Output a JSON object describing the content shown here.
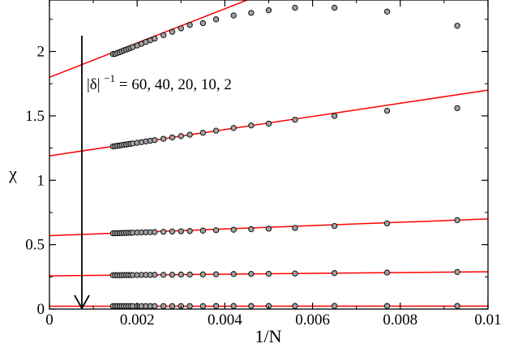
{
  "chart_data": {
    "type": "scatter",
    "xlabel": "1/N",
    "ylabel": "χ",
    "xlim": [
      0,
      0.01
    ],
    "ylim": [
      0,
      2.4
    ],
    "xticks": [
      0,
      0.002,
      0.004,
      0.006,
      0.008,
      0.01
    ],
    "xtick_labels": [
      "0",
      "0.002",
      "0.004",
      "0.006",
      "0.008",
      "0.01"
    ],
    "yticks": [
      0,
      0.5,
      1,
      1.5,
      2
    ],
    "ytick_labels": [
      "0",
      "0.5",
      "1",
      "1.5",
      "2"
    ],
    "grid": false,
    "colors": {
      "fit_line": "#ff0000",
      "marker_fill": "#a0a0a0",
      "marker_edge": "#000000",
      "axes": "#000000"
    },
    "annotation": {
      "base": "|δ|",
      "exponent": "−1",
      "rest": " = 60, 40, 20, 10, 2",
      "arrow_direction": "down"
    },
    "x": [
      0.00145,
      0.0015,
      0.00155,
      0.0016,
      0.00165,
      0.0017,
      0.00175,
      0.0018,
      0.00185,
      0.0019,
      0.002,
      0.0021,
      0.0022,
      0.0023,
      0.0024,
      0.0026,
      0.0028,
      0.003,
      0.0032,
      0.0035,
      0.0038,
      0.0042,
      0.0046,
      0.005,
      0.0056,
      0.0065,
      0.0077,
      0.0093
    ],
    "series": [
      {
        "values": [
          1.98,
          1.982,
          1.989,
          1.995,
          2.001,
          2.009,
          2.015,
          2.021,
          2.028,
          2.034,
          2.047,
          2.06,
          2.074,
          2.087,
          2.1,
          2.127,
          2.153,
          2.18,
          2.206,
          2.22,
          2.25,
          2.28,
          2.3,
          2.32,
          2.34,
          2.34,
          2.31,
          2.2
        ],
        "fit": {
          "intercept": 1.8,
          "slope": 133
        }
      },
      {
        "values": [
          1.263,
          1.265,
          1.268,
          1.27,
          1.273,
          1.276,
          1.278,
          1.281,
          1.283,
          1.286,
          1.291,
          1.296,
          1.302,
          1.307,
          1.312,
          1.322,
          1.333,
          1.343,
          1.354,
          1.369,
          1.385,
          1.406,
          1.426,
          1.44,
          1.47,
          1.5,
          1.54,
          1.56
        ],
        "fit": {
          "intercept": 1.19,
          "slope": 51
        }
      },
      {
        "values": [
          0.588,
          0.589,
          0.589,
          0.59,
          0.59,
          0.591,
          0.591,
          0.592,
          0.592,
          0.593,
          0.594,
          0.595,
          0.596,
          0.597,
          0.598,
          0.6,
          0.602,
          0.604,
          0.606,
          0.609,
          0.612,
          0.616,
          0.62,
          0.624,
          0.63,
          0.645,
          0.665,
          0.69
        ],
        "fit": {
          "intercept": 0.57,
          "slope": 13
        }
      },
      {
        "values": [
          0.263,
          0.263,
          0.263,
          0.263,
          0.263,
          0.264,
          0.264,
          0.264,
          0.264,
          0.264,
          0.264,
          0.265,
          0.265,
          0.265,
          0.266,
          0.266,
          0.267,
          0.268,
          0.268,
          0.269,
          0.27,
          0.272,
          0.273,
          0.274,
          0.276,
          0.279,
          0.283,
          0.288
        ],
        "fit": {
          "intercept": 0.258,
          "slope": 3.2
        }
      },
      {
        "values": [
          0.023,
          0.023,
          0.023,
          0.023,
          0.023,
          0.023,
          0.023,
          0.023,
          0.023,
          0.023,
          0.023,
          0.023,
          0.023,
          0.023,
          0.023,
          0.023,
          0.023,
          0.023,
          0.023,
          0.023,
          0.024,
          0.024,
          0.024,
          0.024,
          0.024,
          0.024,
          0.024,
          0.024
        ],
        "fit": {
          "intercept": 0.022,
          "slope": 0.1
        }
      }
    ]
  }
}
